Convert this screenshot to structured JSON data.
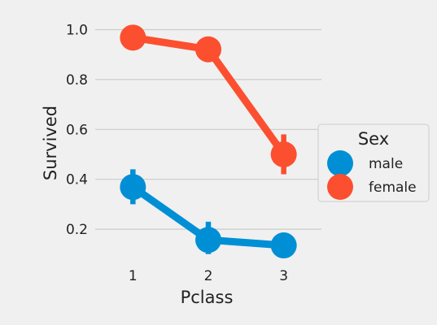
{
  "chart_data": {
    "type": "line",
    "title": "",
    "xlabel": "Pclass",
    "ylabel": "Survived",
    "categories": [
      "1",
      "2",
      "3"
    ],
    "yticks": [
      "0.2",
      "0.4",
      "0.6",
      "0.8",
      "1.0"
    ],
    "ylim": [
      0.07,
      1.07
    ],
    "grid": true,
    "legend": {
      "title": "Sex",
      "placement": "center-right"
    },
    "series": [
      {
        "name": "male",
        "color": "#008fd5",
        "values": [
          0.369,
          0.157,
          0.135
        ],
        "ci": [
          [
            0.3,
            0.44
          ],
          [
            0.1,
            0.23
          ],
          [
            0.1,
            0.17
          ]
        ]
      },
      {
        "name": "female",
        "color": "#fc4f30",
        "values": [
          0.968,
          0.921,
          0.5
        ],
        "ci": [
          [
            0.94,
            0.99
          ],
          [
            0.87,
            0.97
          ],
          [
            0.42,
            0.58
          ]
        ]
      }
    ]
  }
}
